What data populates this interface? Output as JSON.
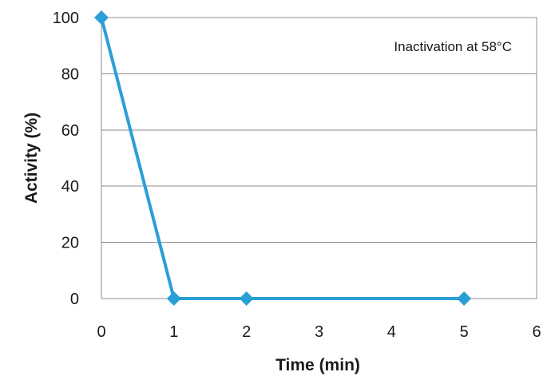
{
  "chart_data": {
    "type": "line",
    "title": "",
    "xlabel": "Time (min)",
    "ylabel": "Activity (%)",
    "xlim": [
      0,
      6
    ],
    "ylim": [
      0,
      100
    ],
    "x_ticks": [
      "0",
      "1",
      "2",
      "3",
      "4",
      "5",
      "6"
    ],
    "y_ticks": [
      "0",
      "20",
      "40",
      "60",
      "80",
      "100"
    ],
    "grid": "horizontal",
    "legend": "none",
    "annotation": "Inactivation at 58°C",
    "series": [
      {
        "x": [
          0,
          1,
          2,
          5
        ],
        "y": [
          100,
          0,
          0,
          0
        ],
        "color": "#2a9fd6",
        "marker": "diamond"
      }
    ]
  }
}
